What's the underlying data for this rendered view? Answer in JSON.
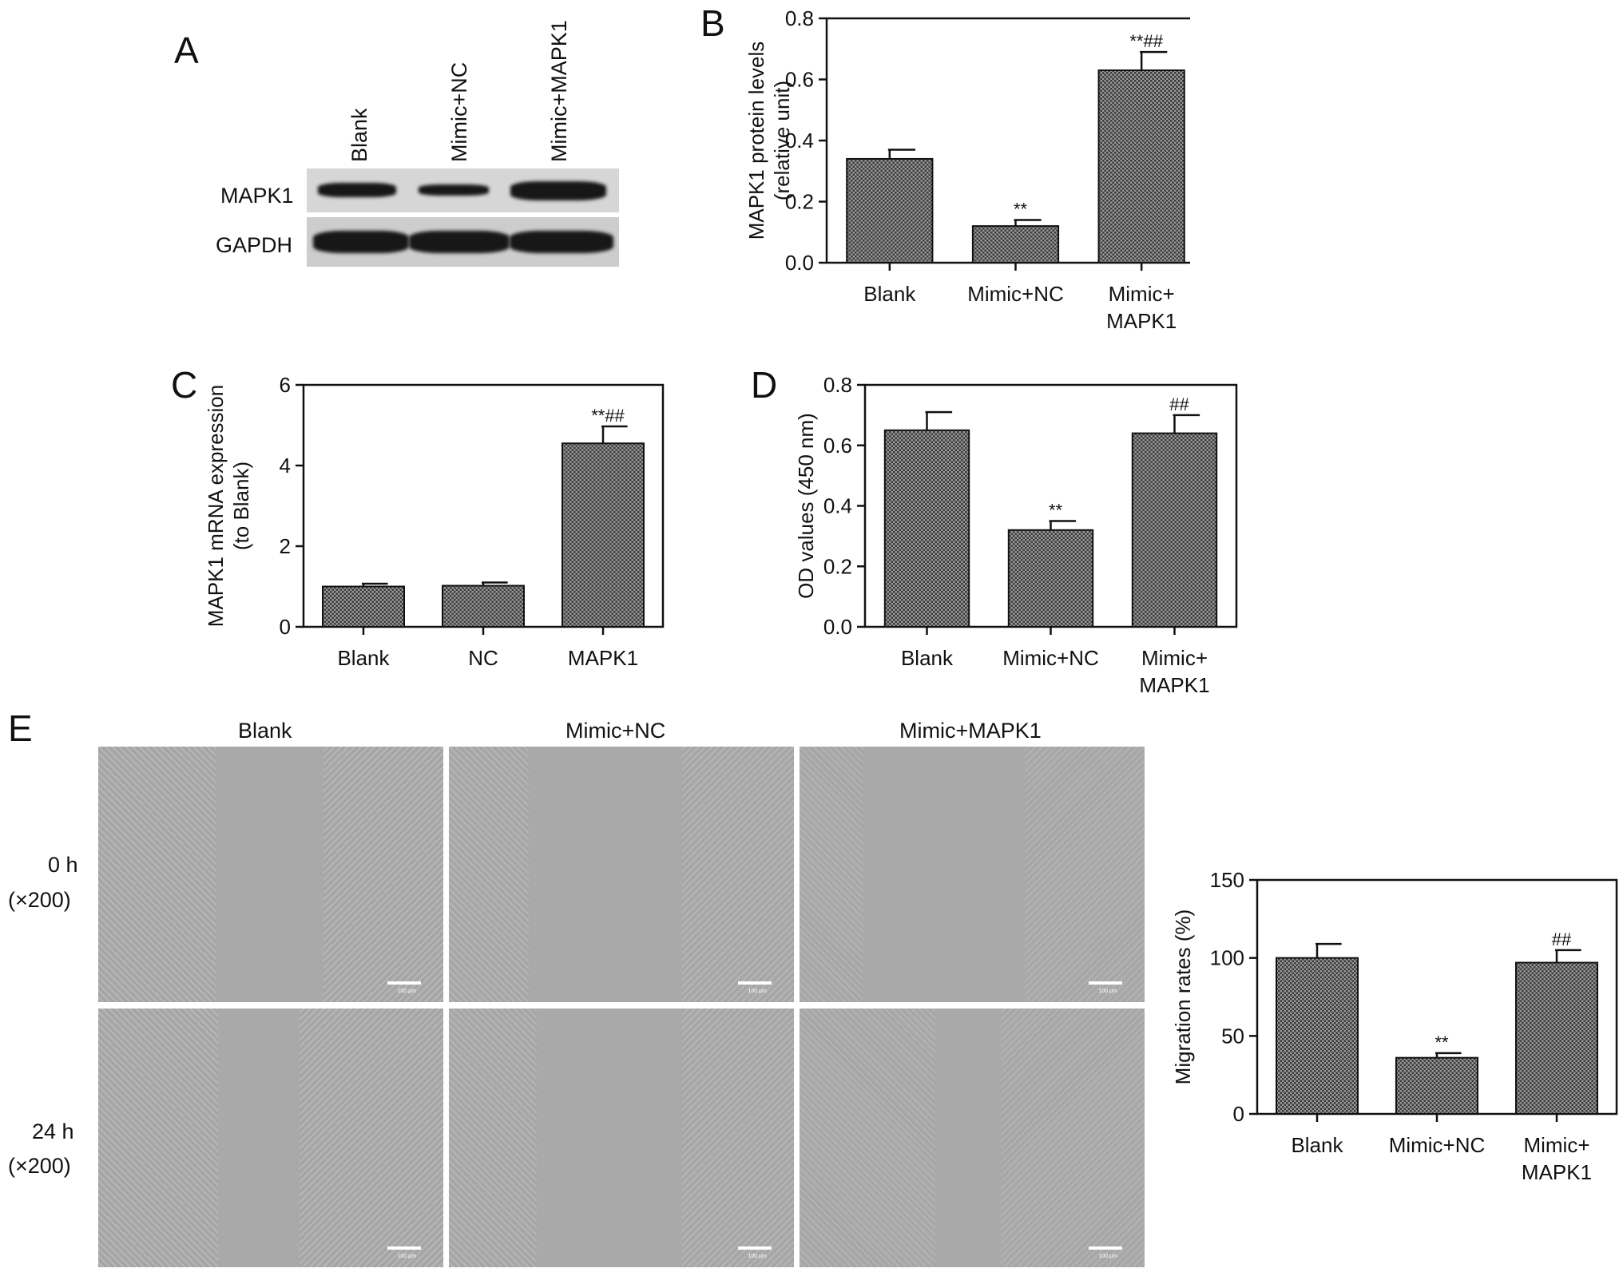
{
  "panels": {
    "a": "A",
    "b": "B",
    "c": "C",
    "d": "D",
    "e": "E"
  },
  "western_blot": {
    "lanes": [
      "Blank",
      "Mimic+NC",
      "Mimic+MAPK1"
    ],
    "proteins": [
      "MAPK1",
      "GAPDH"
    ],
    "band_intensity": {
      "MAPK1": [
        0.65,
        0.45,
        1.0
      ],
      "GAPDH": [
        1.0,
        1.0,
        1.0
      ]
    }
  },
  "micrographs": {
    "columns": [
      "Blank",
      "Mimic+NC",
      "Mimic+MAPK1"
    ],
    "rows": [
      {
        "time": "0 h",
        "magnification": "(×200)"
      },
      {
        "time": "24 h",
        "magnification": "(×200)"
      }
    ],
    "scale_label": "100 μm"
  },
  "chart_data": [
    {
      "type": "bar",
      "categories": [
        "Blank",
        "Mimic+NC",
        "Mimic+\nMAPK1"
      ],
      "values": [
        0.34,
        0.12,
        0.63
      ],
      "errors": [
        0.03,
        0.02,
        0.06
      ],
      "annotations": [
        "",
        "**",
        "**##"
      ],
      "title": "",
      "xlabel": "",
      "ylabel": "MAPK1 protein levels\n(relative unit)",
      "ylim": [
        0,
        0.8
      ],
      "yticks": [
        "0.0",
        "0.2",
        "0.4",
        "0.6",
        "0.8"
      ]
    },
    {
      "type": "bar",
      "categories": [
        "Blank",
        "NC",
        "MAPK1"
      ],
      "values": [
        1.0,
        1.02,
        4.55
      ],
      "errors": [
        0.07,
        0.08,
        0.42
      ],
      "annotations": [
        "",
        "",
        "**##"
      ],
      "title": "",
      "xlabel": "",
      "ylabel": "MAPK1 mRNA expression\n(to Blank)",
      "ylim": [
        0,
        6
      ],
      "yticks": [
        "0",
        "2",
        "4",
        "6"
      ]
    },
    {
      "type": "bar",
      "categories": [
        "Blank",
        "Mimic+NC",
        "Mimic+\nMAPK1"
      ],
      "values": [
        0.65,
        0.32,
        0.64
      ],
      "errors": [
        0.06,
        0.03,
        0.06
      ],
      "annotations": [
        "",
        "**",
        "##"
      ],
      "title": "",
      "xlabel": "",
      "ylabel": "OD values (450 nm)",
      "ylim": [
        0,
        0.8
      ],
      "yticks": [
        "0.0",
        "0.2",
        "0.4",
        "0.6",
        "0.8"
      ]
    },
    {
      "type": "bar",
      "categories": [
        "Blank",
        "Mimic+NC",
        "Mimic+\nMAPK1"
      ],
      "values": [
        100,
        36,
        97
      ],
      "errors": [
        9,
        3,
        8
      ],
      "annotations": [
        "",
        "**",
        "##"
      ],
      "title": "",
      "xlabel": "",
      "ylabel": "Migration rates (%)",
      "ylim": [
        0,
        150
      ],
      "yticks": [
        "0",
        "50",
        "100",
        "150"
      ]
    }
  ]
}
